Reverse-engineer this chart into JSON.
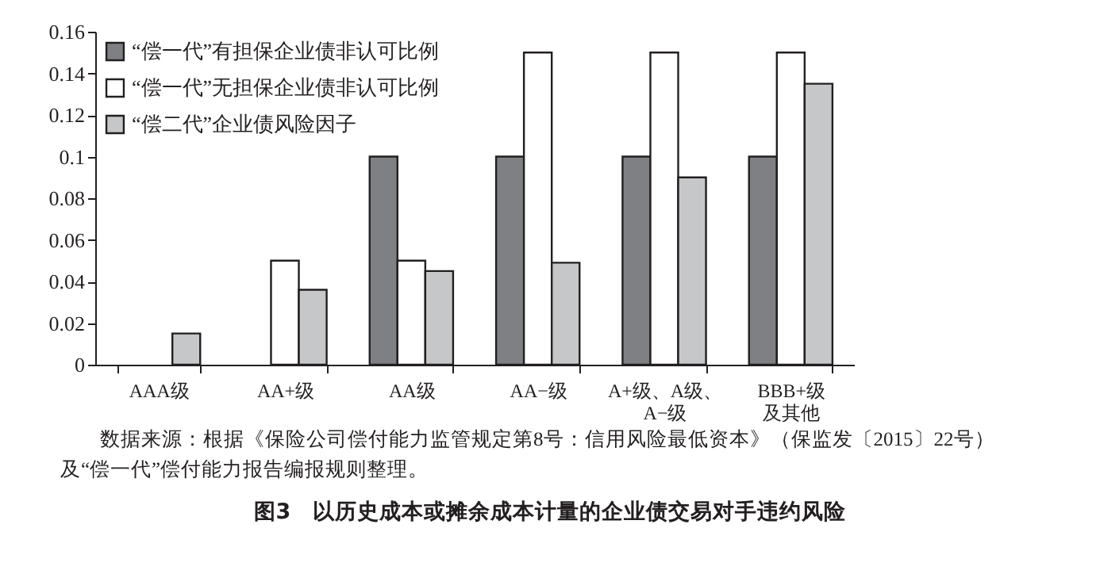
{
  "chart_data": {
    "type": "bar",
    "categories": [
      "AAA级",
      "AA+级",
      "AA级",
      "AA−级",
      "A+级、A级、A−级",
      "BBB+级及其他"
    ],
    "series": [
      {
        "name": "“偿一代”有担保企业债非认可比例",
        "color": "#7f8083",
        "values": [
          null,
          null,
          0.1,
          0.1,
          0.1,
          0.1
        ]
      },
      {
        "name": "“偿一代”无担保企业债非认可比例",
        "color": "#ffffff",
        "values": [
          null,
          0.05,
          0.05,
          0.15,
          0.15,
          0.15
        ]
      },
      {
        "name": "“偿二代”企业债风险因子",
        "color": "#c6c7c9",
        "values": [
          0.015,
          0.036,
          0.045,
          0.049,
          0.09,
          0.135
        ]
      }
    ],
    "ylim": [
      0,
      0.16
    ],
    "yticks": [
      0,
      0.02,
      0.04,
      0.06,
      0.08,
      0.1,
      0.12,
      0.14,
      0.16
    ],
    "grid": false,
    "legend": "top left",
    "annotations": [
      "数据来源：根据《保险公司偿付能力监管规定第8号：信用风险最低资本》（保监发〔2015〕22号）及“偿一代”偿付能力报告编报规则整理。"
    ],
    "title": "图3　以历史成本或摊余成本计量的企业债交易对手违约风险"
  }
}
